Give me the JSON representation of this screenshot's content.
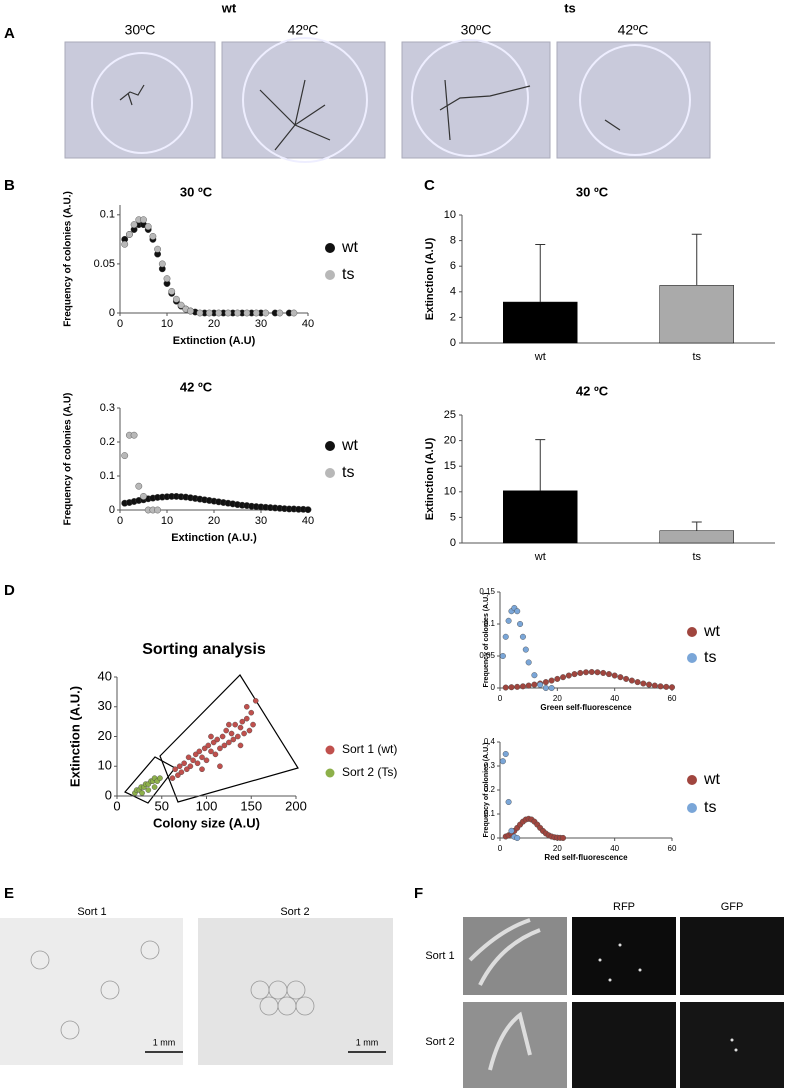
{
  "panel_labels": [
    "A",
    "B",
    "C",
    "D",
    "E",
    "F"
  ],
  "panel_a": {
    "groups": [
      {
        "title": "wt",
        "images": [
          "30ºC",
          "42ºC"
        ]
      },
      {
        "title": "ts",
        "images": [
          "30ºC",
          "42ºC"
        ]
      }
    ]
  },
  "panel_e": {
    "images": [
      "Sort 1",
      "Sort 2"
    ],
    "scale_bars": [
      "1 mm",
      "1 mm"
    ]
  },
  "panel_f": {
    "columns": [
      "RFP",
      "GFP"
    ],
    "rows": [
      "Sort 1",
      "Sort 2"
    ]
  },
  "chart_data": [
    {
      "type": "scatter",
      "title": "30 ºC",
      "x_label": "Extinction (A.U)",
      "y_label": "Frequency of colonies (A.U.)",
      "xlim": [
        0,
        40
      ],
      "xticks": [
        0,
        10,
        20,
        30,
        40
      ],
      "ylim": [
        0,
        0.11
      ],
      "yticks": [
        0,
        0.05,
        0.1
      ],
      "series": [
        {
          "name": "wt",
          "color": "#111111",
          "x": [
            1,
            2,
            3,
            4,
            5,
            6,
            7,
            8,
            9,
            10,
            11,
            12,
            13,
            14,
            15,
            16,
            18,
            20,
            22,
            24,
            26,
            28,
            30,
            33,
            36
          ],
          "values": [
            0.075,
            0.08,
            0.085,
            0.09,
            0.09,
            0.085,
            0.075,
            0.06,
            0.045,
            0.03,
            0.02,
            0.012,
            0.007,
            0.004,
            0.002,
            0.001,
            0,
            0,
            0,
            0,
            0,
            0,
            0,
            0,
            0
          ]
        },
        {
          "name": "ts",
          "color": "#b8b8b8",
          "x": [
            1,
            2,
            3,
            4,
            5,
            6,
            7,
            8,
            9,
            10,
            11,
            12,
            13,
            14,
            15,
            17,
            19,
            21,
            23,
            25,
            27,
            29,
            31,
            34,
            37
          ],
          "values": [
            0.07,
            0.08,
            0.09,
            0.095,
            0.095,
            0.088,
            0.078,
            0.065,
            0.05,
            0.035,
            0.022,
            0.014,
            0.008,
            0.004,
            0.002,
            0,
            0,
            0,
            0,
            0,
            0,
            0,
            0,
            0,
            0
          ]
        }
      ]
    },
    {
      "type": "scatter",
      "title": "42 ºC",
      "x_label": "Extinction (A.U.)",
      "y_label": "Frequency of colonies (A.U)",
      "xlim": [
        0,
        40
      ],
      "xticks": [
        0,
        10,
        20,
        30,
        40
      ],
      "ylim": [
        0,
        0.3
      ],
      "yticks": [
        0,
        0.1,
        0.2,
        0.3
      ],
      "series": [
        {
          "name": "wt",
          "color": "#111111",
          "x": [
            1,
            2,
            3,
            4,
            5,
            6,
            7,
            8,
            9,
            10,
            11,
            12,
            13,
            14,
            15,
            16,
            17,
            18,
            19,
            20,
            21,
            22,
            23,
            24,
            25,
            26,
            27,
            28,
            29,
            30,
            31,
            32,
            33,
            34,
            35,
            36,
            37,
            38,
            39,
            40
          ],
          "values": [
            0.02,
            0.022,
            0.025,
            0.028,
            0.03,
            0.033,
            0.035,
            0.037,
            0.038,
            0.039,
            0.04,
            0.04,
            0.039,
            0.038,
            0.036,
            0.034,
            0.032,
            0.03,
            0.028,
            0.026,
            0.024,
            0.022,
            0.02,
            0.018,
            0.016,
            0.014,
            0.013,
            0.011,
            0.01,
            0.009,
            0.008,
            0.007,
            0.006,
            0.005,
            0.004,
            0.003,
            0.003,
            0.002,
            0.002,
            0.001
          ]
        },
        {
          "name": "ts",
          "color": "#b8b8b8",
          "x": [
            1,
            2,
            3,
            4,
            5,
            6,
            7,
            8
          ],
          "values": [
            0.16,
            0.22,
            0.22,
            0.07,
            0.04,
            0,
            0,
            0
          ]
        }
      ]
    },
    {
      "type": "bar",
      "title": "30 ºC",
      "y_label": "Extinction (A.U)",
      "categories": [
        "wt",
        "ts"
      ],
      "values": [
        3.2,
        4.5
      ],
      "errors": [
        4.5,
        4.0
      ],
      "colors": [
        "#000000",
        "#aaaaaa"
      ],
      "ylim": [
        0,
        10
      ],
      "yticks": [
        0,
        2,
        4,
        6,
        8,
        10
      ]
    },
    {
      "type": "bar",
      "title": "42 ºC",
      "y_label": "Extinction (A.U)",
      "categories": [
        "wt",
        "ts"
      ],
      "values": [
        10.2,
        2.4
      ],
      "errors": [
        10,
        1.7
      ],
      "colors": [
        "#000000",
        "#aaaaaa"
      ],
      "ylim": [
        0,
        25
      ],
      "yticks": [
        0,
        5,
        10,
        15,
        20,
        25
      ]
    },
    {
      "type": "scatter",
      "title": "Sorting analysis",
      "x_label": "Colony size (A.U)",
      "y_label": "Extinction (A.U.)",
      "xlim": [
        0,
        200
      ],
      "xticks": [
        0,
        50,
        100,
        150,
        200
      ],
      "ylim": [
        0,
        40
      ],
      "yticks": [
        0,
        10,
        20,
        30,
        40
      ],
      "series": [
        {
          "name": "Sort 1 (wt)",
          "color": "#c0504d",
          "x": [
            62,
            65,
            68,
            70,
            72,
            75,
            78,
            80,
            82,
            85,
            88,
            90,
            92,
            95,
            98,
            100,
            102,
            105,
            108,
            110,
            112,
            115,
            118,
            120,
            122,
            125,
            128,
            130,
            132,
            135,
            138,
            140,
            142,
            145,
            148,
            150,
            152,
            155,
            115,
            125,
            105,
            95,
            138,
            145
          ],
          "values": [
            6,
            9,
            7,
            10,
            8,
            11,
            9,
            13,
            10,
            12,
            14,
            11,
            15,
            13,
            16,
            12,
            17,
            15,
            18,
            14,
            19,
            16,
            20,
            17,
            22,
            18,
            21,
            19,
            24,
            20,
            23,
            25,
            21,
            26,
            22,
            28,
            24,
            32,
            10,
            24,
            20,
            9,
            17,
            30
          ]
        },
        {
          "name": "Sort 2 (Ts)",
          "color": "#8db04a",
          "x": [
            20,
            22,
            25,
            27,
            30,
            32,
            35,
            38,
            40,
            42,
            45,
            48,
            28,
            35,
            42
          ],
          "values": [
            1,
            2,
            2,
            3,
            3,
            4,
            4,
            5,
            5,
            6,
            5,
            6,
            1,
            2,
            3
          ]
        }
      ]
    },
    {
      "type": "scatter",
      "x_label": "Green self-fluorescence",
      "y_label": "Frequency of colonies (A.U.)",
      "xlim": [
        0,
        60
      ],
      "xticks": [
        0,
        20,
        40,
        60
      ],
      "ylim": [
        0,
        0.15
      ],
      "yticks": [
        0,
        0.05,
        0.1,
        0.15
      ],
      "series": [
        {
          "name": "wt",
          "color": "#a0453e",
          "x": [
            2,
            4,
            6,
            8,
            10,
            12,
            14,
            16,
            18,
            20,
            22,
            24,
            26,
            28,
            30,
            32,
            34,
            36,
            38,
            40,
            42,
            44,
            46,
            48,
            50,
            52,
            54,
            56,
            58,
            60
          ],
          "values": [
            0.0007,
            0.0012,
            0.0018,
            0.0026,
            0.0038,
            0.0053,
            0.007,
            0.0092,
            0.0116,
            0.0142,
            0.0169,
            0.0195,
            0.0217,
            0.0235,
            0.0246,
            0.025,
            0.0246,
            0.0235,
            0.0217,
            0.0195,
            0.0169,
            0.0142,
            0.0116,
            0.0092,
            0.007,
            0.0053,
            0.0038,
            0.0026,
            0.0018,
            0.0012
          ]
        },
        {
          "name": "ts",
          "color": "#7aa6d8",
          "x": [
            1,
            2,
            3,
            4,
            5,
            6,
            7,
            8,
            9,
            10,
            12,
            14,
            16,
            18
          ],
          "values": [
            0.05,
            0.08,
            0.105,
            0.12,
            0.125,
            0.12,
            0.1,
            0.08,
            0.06,
            0.04,
            0.02,
            0.005,
            0,
            0
          ]
        }
      ]
    },
    {
      "type": "scatter",
      "x_label": "Red self-fluorescence",
      "y_label": "Frequency of colonies (A.U.)",
      "xlim": [
        0,
        60
      ],
      "xticks": [
        0,
        20,
        40,
        60
      ],
      "ylim": [
        0,
        0.4
      ],
      "yticks": [
        0,
        0.1,
        0.2,
        0.3,
        0.4
      ],
      "series": [
        {
          "name": "wt",
          "color": "#a0453e",
          "x": [
            2,
            3,
            4,
            5,
            6,
            7,
            8,
            9,
            10,
            11,
            12,
            13,
            14,
            15,
            16,
            17,
            18,
            19,
            20,
            21,
            22
          ],
          "values": [
            0.0062,
            0.0113,
            0.019,
            0.0294,
            0.0422,
            0.0558,
            0.0682,
            0.0769,
            0.08,
            0.0769,
            0.0682,
            0.0558,
            0.0422,
            0.0294,
            0.019,
            0.0113,
            0.0062,
            0.003,
            0.0015,
            0.0006,
            0.0002
          ]
        },
        {
          "name": "ts",
          "color": "#7aa6d8",
          "x": [
            1,
            2,
            3,
            4,
            5,
            6
          ],
          "values": [
            0.32,
            0.35,
            0.15,
            0.03,
            0.005,
            0
          ]
        }
      ]
    }
  ]
}
